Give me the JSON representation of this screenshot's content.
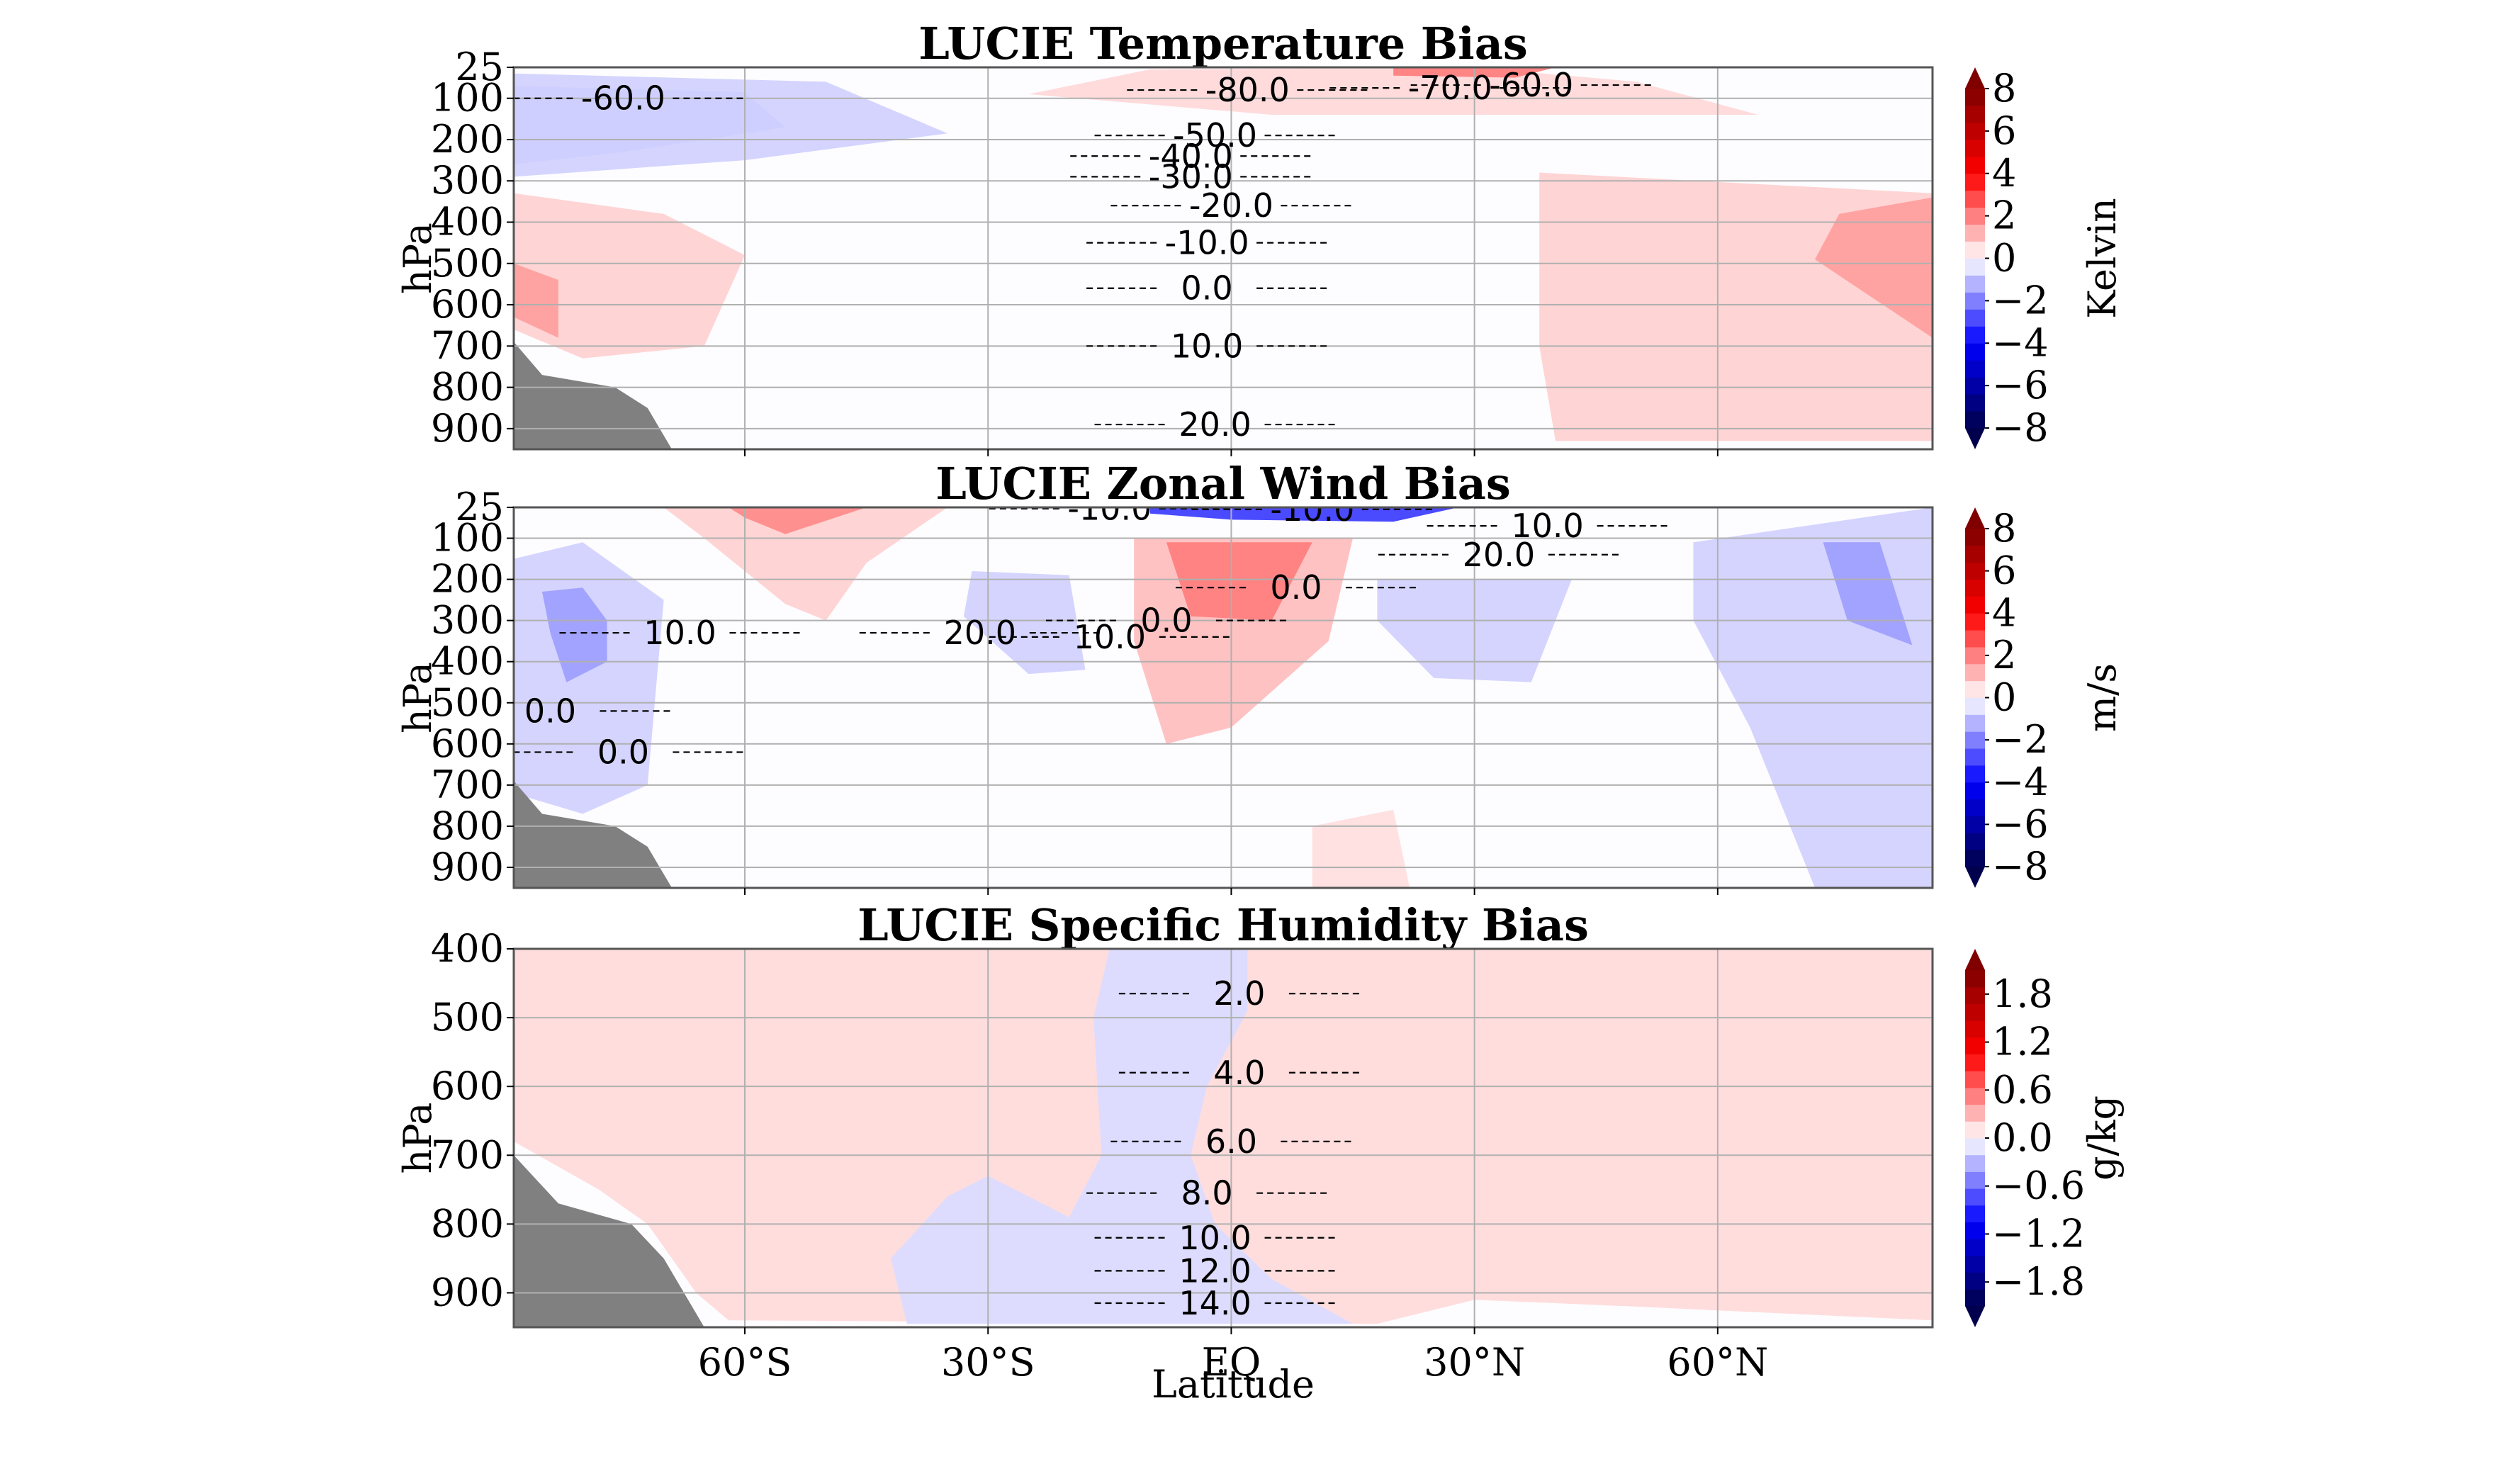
{
  "chart_data": {
    "type": "heatmap",
    "xlabel": "Latitude",
    "xlim": [
      -88.5,
      86.5
    ],
    "x_ticks": [
      -60,
      -30,
      0,
      30,
      60
    ],
    "x_tick_labels": [
      "60°S",
      "30°S",
      "EQ",
      "30°N",
      "60°N"
    ],
    "panels": [
      {
        "title": "LUCIE Temperature Bias",
        "ylabel": "hPa",
        "ylim": [
          25,
          950
        ],
        "y_ticks": [
          25,
          100,
          200,
          300,
          400,
          500,
          600,
          700,
          800,
          900
        ],
        "y_tick_labels": [
          "25",
          "100",
          "200",
          "300",
          "400",
          "500",
          "600",
          "700",
          "800",
          "900"
        ],
        "colorbar": {
          "label": "Kelvin",
          "range": [
            -8,
            8
          ],
          "ticks": [
            8,
            6,
            4,
            2,
            0,
            -2,
            -4,
            -6,
            -8
          ],
          "tick_labels": [
            "8",
            "6",
            "4",
            "2",
            "0",
            "−2",
            "−4",
            "−6",
            "−8"
          ],
          "extend": "both",
          "colormap": "seismic"
        },
        "shading": [
          {
            "value": -1.5,
            "points": [
              [
                -88.5,
                70
              ],
              [
                -60,
                85
              ],
              [
                -55,
                170
              ],
              [
                -75,
                230
              ],
              [
                -88.5,
                260
              ]
            ]
          },
          {
            "value": -0.7,
            "points": [
              [
                -88.5,
                40
              ],
              [
                -50,
                60
              ],
              [
                -35,
                185
              ],
              [
                -60,
                250
              ],
              [
                -88.5,
                290
              ]
            ]
          },
          {
            "value": 0.7,
            "points": [
              [
                -88.5,
                330
              ],
              [
                -70,
                380
              ],
              [
                -60,
                480
              ],
              [
                -65,
                700
              ],
              [
                -80,
                730
              ],
              [
                -88.5,
                660
              ]
            ]
          },
          {
            "value": 1.5,
            "points": [
              [
                -88.5,
                500
              ],
              [
                -83,
                540
              ],
              [
                -83,
                680
              ],
              [
                -88.5,
                630
              ]
            ]
          },
          {
            "value": 0.6,
            "points": [
              [
                -10,
                30
              ],
              [
                30,
                25
              ],
              [
                50,
                60
              ],
              [
                65,
                140
              ],
              [
                5,
                140
              ],
              [
                -25,
                90
              ]
            ]
          },
          {
            "value": 2.0,
            "points": [
              [
                20,
                25
              ],
              [
                40,
                25
              ],
              [
                35,
                50
              ],
              [
                20,
                45
              ]
            ]
          },
          {
            "value": 0.7,
            "points": [
              [
                38,
                280
              ],
              [
                86.5,
                330
              ],
              [
                86.5,
                930
              ],
              [
                40,
                930
              ],
              [
                38,
                700
              ]
            ]
          },
          {
            "value": 1.5,
            "points": [
              [
                75,
                380
              ],
              [
                86.5,
                340
              ],
              [
                86.5,
                680
              ],
              [
                72,
                490
              ]
            ]
          }
        ],
        "contours": [
          {
            "level": -80,
            "label": "-80.0",
            "label_at": [
              2,
              80
            ]
          },
          {
            "level": -70,
            "label": "-70.0",
            "label_at": [
              27,
              75
            ]
          },
          {
            "level": -60,
            "label": "-60.0",
            "label_at": [
              37,
              68
            ]
          },
          {
            "level": -60,
            "label": "-60.0",
            "label_at": [
              -75,
              100
            ]
          },
          {
            "level": -50,
            "label": "-50.0",
            "label_at": [
              -2,
              190
            ]
          },
          {
            "level": -40,
            "label": "-40.0",
            "label_at": [
              -5,
              240
            ]
          },
          {
            "level": -30,
            "label": "-30.0",
            "label_at": [
              -5,
              290
            ]
          },
          {
            "level": -20,
            "label": "-20.0",
            "label_at": [
              0,
              360
            ]
          },
          {
            "level": -10,
            "label": "-10.0",
            "label_at": [
              -3,
              450
            ]
          },
          {
            "level": 0,
            "label": "0.0",
            "label_at": [
              -3,
              560
            ]
          },
          {
            "level": 10,
            "label": "10.0",
            "label_at": [
              -3,
              700
            ]
          },
          {
            "level": 20,
            "label": "20.0",
            "label_at": [
              -2,
              890
            ]
          }
        ]
      },
      {
        "title": "LUCIE Zonal Wind Bias",
        "ylabel": "hPa",
        "ylim": [
          25,
          950
        ],
        "y_ticks": [
          25,
          100,
          200,
          300,
          400,
          500,
          600,
          700,
          800,
          900
        ],
        "y_tick_labels": [
          "25",
          "100",
          "200",
          "300",
          "400",
          "500",
          "600",
          "700",
          "800",
          "900"
        ],
        "colorbar": {
          "label": "m/s",
          "range": [
            -8,
            8
          ],
          "ticks": [
            8,
            6,
            4,
            2,
            0,
            -2,
            -4,
            -6,
            -8
          ],
          "tick_labels": [
            "8",
            "6",
            "4",
            "2",
            "0",
            "−2",
            "−4",
            "−6",
            "−8"
          ],
          "extend": "both",
          "colormap": "seismic"
        },
        "shading": [
          {
            "value": -0.7,
            "points": [
              [
                -88.5,
                150
              ],
              [
                -80,
                110
              ],
              [
                -70,
                250
              ],
              [
                -72,
                700
              ],
              [
                -80,
                770
              ],
              [
                -88.5,
                720
              ]
            ]
          },
          {
            "value": -1.5,
            "points": [
              [
                -85,
                230
              ],
              [
                -80,
                220
              ],
              [
                -77,
                300
              ],
              [
                -77,
                400
              ],
              [
                -82,
                450
              ],
              [
                -84,
                330
              ]
            ]
          },
          {
            "value": 0.7,
            "points": [
              [
                -70,
                25
              ],
              [
                -35,
                25
              ],
              [
                -45,
                160
              ],
              [
                -50,
                300
              ],
              [
                -55,
                260
              ],
              [
                -65,
                100
              ]
            ]
          },
          {
            "value": 1.8,
            "points": [
              [
                -62,
                25
              ],
              [
                -45,
                25
              ],
              [
                -55,
                90
              ],
              [
                -60,
                50
              ]
            ]
          },
          {
            "value": -0.7,
            "points": [
              [
                -32,
                180
              ],
              [
                -20,
                190
              ],
              [
                -18,
                420
              ],
              [
                -25,
                430
              ],
              [
                -33,
                290
              ]
            ]
          },
          {
            "value": 1.0,
            "points": [
              [
                -12,
                100
              ],
              [
                15,
                100
              ],
              [
                12,
                350
              ],
              [
                0,
                560
              ],
              [
                -8,
                600
              ],
              [
                -12,
                350
              ]
            ]
          },
          {
            "value": 2.0,
            "points": [
              [
                -8,
                110
              ],
              [
                10,
                110
              ],
              [
                5,
                300
              ],
              [
                -5,
                290
              ]
            ]
          },
          {
            "value": -3.0,
            "points": [
              [
                -10,
                25
              ],
              [
                28,
                25
              ],
              [
                20,
                60
              ],
              [
                0,
                55
              ],
              [
                -10,
                40
              ]
            ]
          },
          {
            "value": -0.7,
            "points": [
              [
                18,
                200
              ],
              [
                42,
                200
              ],
              [
                37,
                450
              ],
              [
                25,
                440
              ],
              [
                18,
                300
              ]
            ]
          },
          {
            "value": -0.7,
            "points": [
              [
                57,
                110
              ],
              [
                86.5,
                25
              ],
              [
                86.5,
                950
              ],
              [
                72,
                950
              ],
              [
                64,
                560
              ],
              [
                57,
                300
              ]
            ]
          },
          {
            "value": -1.5,
            "points": [
              [
                73,
                110
              ],
              [
                80,
                110
              ],
              [
                84,
                360
              ],
              [
                76,
                300
              ]
            ]
          },
          {
            "value": 0.5,
            "points": [
              [
                10,
                800
              ],
              [
                20,
                760
              ],
              [
                22,
                950
              ],
              [
                10,
                950
              ]
            ]
          }
        ],
        "contours": [
          {
            "level": -10,
            "label": "-10.0",
            "label_at": [
              -15,
              28
            ]
          },
          {
            "level": -10,
            "label": "-10.0",
            "label_at": [
              10,
              30
            ]
          },
          {
            "level": 10,
            "label": "10.0",
            "label_at": [
              39,
              70
            ]
          },
          {
            "level": 20,
            "label": "20.0",
            "label_at": [
              33,
              140
            ]
          },
          {
            "level": 10,
            "label": "10.0",
            "label_at": [
              -68,
              330
            ]
          },
          {
            "level": 20,
            "label": "20.0",
            "label_at": [
              -31,
              330
            ]
          },
          {
            "level": 10,
            "label": "10.0",
            "label_at": [
              -15,
              340
            ]
          },
          {
            "level": 0,
            "label": "0.0",
            "label_at": [
              -8,
              300
            ]
          },
          {
            "level": 0,
            "label": "0.0",
            "label_at": [
              8,
              220
            ]
          },
          {
            "level": 0,
            "label": "0.0",
            "label_at": [
              -84,
              520
            ]
          },
          {
            "level": 0,
            "label": "0.0",
            "label_at": [
              -75,
              620
            ]
          }
        ]
      },
      {
        "title": "LUCIE Specific Humidity Bias",
        "ylabel": "hPa",
        "ylim": [
          400,
          950
        ],
        "y_ticks": [
          400,
          500,
          600,
          700,
          800,
          900
        ],
        "y_tick_labels": [
          "400",
          "500",
          "600",
          "700",
          "800",
          "900"
        ],
        "colorbar": {
          "label": "g/kg",
          "range": [
            -2.1,
            2.1
          ],
          "ticks": [
            1.8,
            1.2,
            0.6,
            0.0,
            -0.6,
            -1.2,
            -1.8
          ],
          "tick_labels": [
            "1.8",
            "1.2",
            "0.6",
            "0.0",
            "−0.6",
            "−1.2",
            "−1.8"
          ],
          "extend": "both",
          "colormap": "seismic"
        },
        "shading": [
          {
            "value": 0.15,
            "points": [
              [
                -88.5,
                400
              ],
              [
                86.5,
                400
              ],
              [
                86.5,
                940
              ],
              [
                50,
                920
              ],
              [
                30,
                910
              ],
              [
                18,
                945
              ],
              [
                -62,
                940
              ],
              [
                -66,
                900
              ],
              [
                -72,
                800
              ],
              [
                -78,
                750
              ],
              [
                -88.5,
                680
              ]
            ]
          },
          {
            "value": -0.15,
            "points": [
              [
                -15,
                400
              ],
              [
                2,
                400
              ],
              [
                2,
                490
              ],
              [
                -3,
                600
              ],
              [
                -5,
                700
              ],
              [
                -2,
                800
              ],
              [
                5,
                880
              ],
              [
                15,
                945
              ],
              [
                -40,
                945
              ],
              [
                -42,
                850
              ],
              [
                -35,
                760
              ],
              [
                -30,
                730
              ],
              [
                -20,
                790
              ],
              [
                -16,
                700
              ],
              [
                -17,
                500
              ]
            ]
          }
        ],
        "contours": [
          {
            "level": 2,
            "label": "2.0",
            "label_at": [
              1,
              465
            ]
          },
          {
            "level": 4,
            "label": "4.0",
            "label_at": [
              1,
              580
            ]
          },
          {
            "level": 6,
            "label": "6.0",
            "label_at": [
              0,
              680
            ]
          },
          {
            "level": 8,
            "label": "8.0",
            "label_at": [
              -3,
              755
            ]
          },
          {
            "level": 10,
            "label": "10.0",
            "label_at": [
              -2,
              820
            ]
          },
          {
            "level": 12,
            "label": "12.0",
            "label_at": [
              -2,
              868
            ]
          },
          {
            "level": 14,
            "label": "14.0",
            "label_at": [
              -2,
              915
            ]
          }
        ]
      }
    ]
  }
}
